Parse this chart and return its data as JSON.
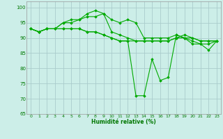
{
  "xlabel": "Humidité relative (%)",
  "background_color": "#cceee8",
  "grid_color": "#aacccc",
  "line_color": "#00aa00",
  "marker_color": "#00aa00",
  "ylim": [
    65,
    102
  ],
  "xlim": [
    -0.5,
    23.5
  ],
  "yticks": [
    65,
    70,
    75,
    80,
    85,
    90,
    95,
    100
  ],
  "xticks": [
    0,
    1,
    2,
    3,
    4,
    5,
    6,
    7,
    8,
    9,
    10,
    11,
    12,
    13,
    14,
    15,
    16,
    17,
    18,
    19,
    20,
    21,
    22,
    23
  ],
  "series": [
    [
      93,
      92,
      93,
      93,
      93,
      93,
      93,
      92,
      92,
      91,
      90,
      89,
      89,
      89,
      89,
      89,
      89,
      89,
      90,
      90,
      90,
      89,
      89,
      89
    ],
    [
      93,
      92,
      93,
      93,
      95,
      95,
      96,
      97,
      97,
      98,
      92,
      91,
      90,
      89,
      89,
      89,
      89,
      89,
      90,
      91,
      90,
      89,
      89,
      89
    ],
    [
      93,
      92,
      93,
      93,
      95,
      96,
      96,
      98,
      99,
      98,
      96,
      95,
      96,
      95,
      90,
      90,
      90,
      90,
      91,
      90,
      89,
      88,
      88,
      89
    ],
    [
      93,
      92,
      93,
      93,
      93,
      93,
      93,
      92,
      92,
      91,
      90,
      89,
      89,
      71,
      71,
      83,
      76,
      77,
      91,
      90,
      88,
      88,
      86,
      89
    ]
  ]
}
